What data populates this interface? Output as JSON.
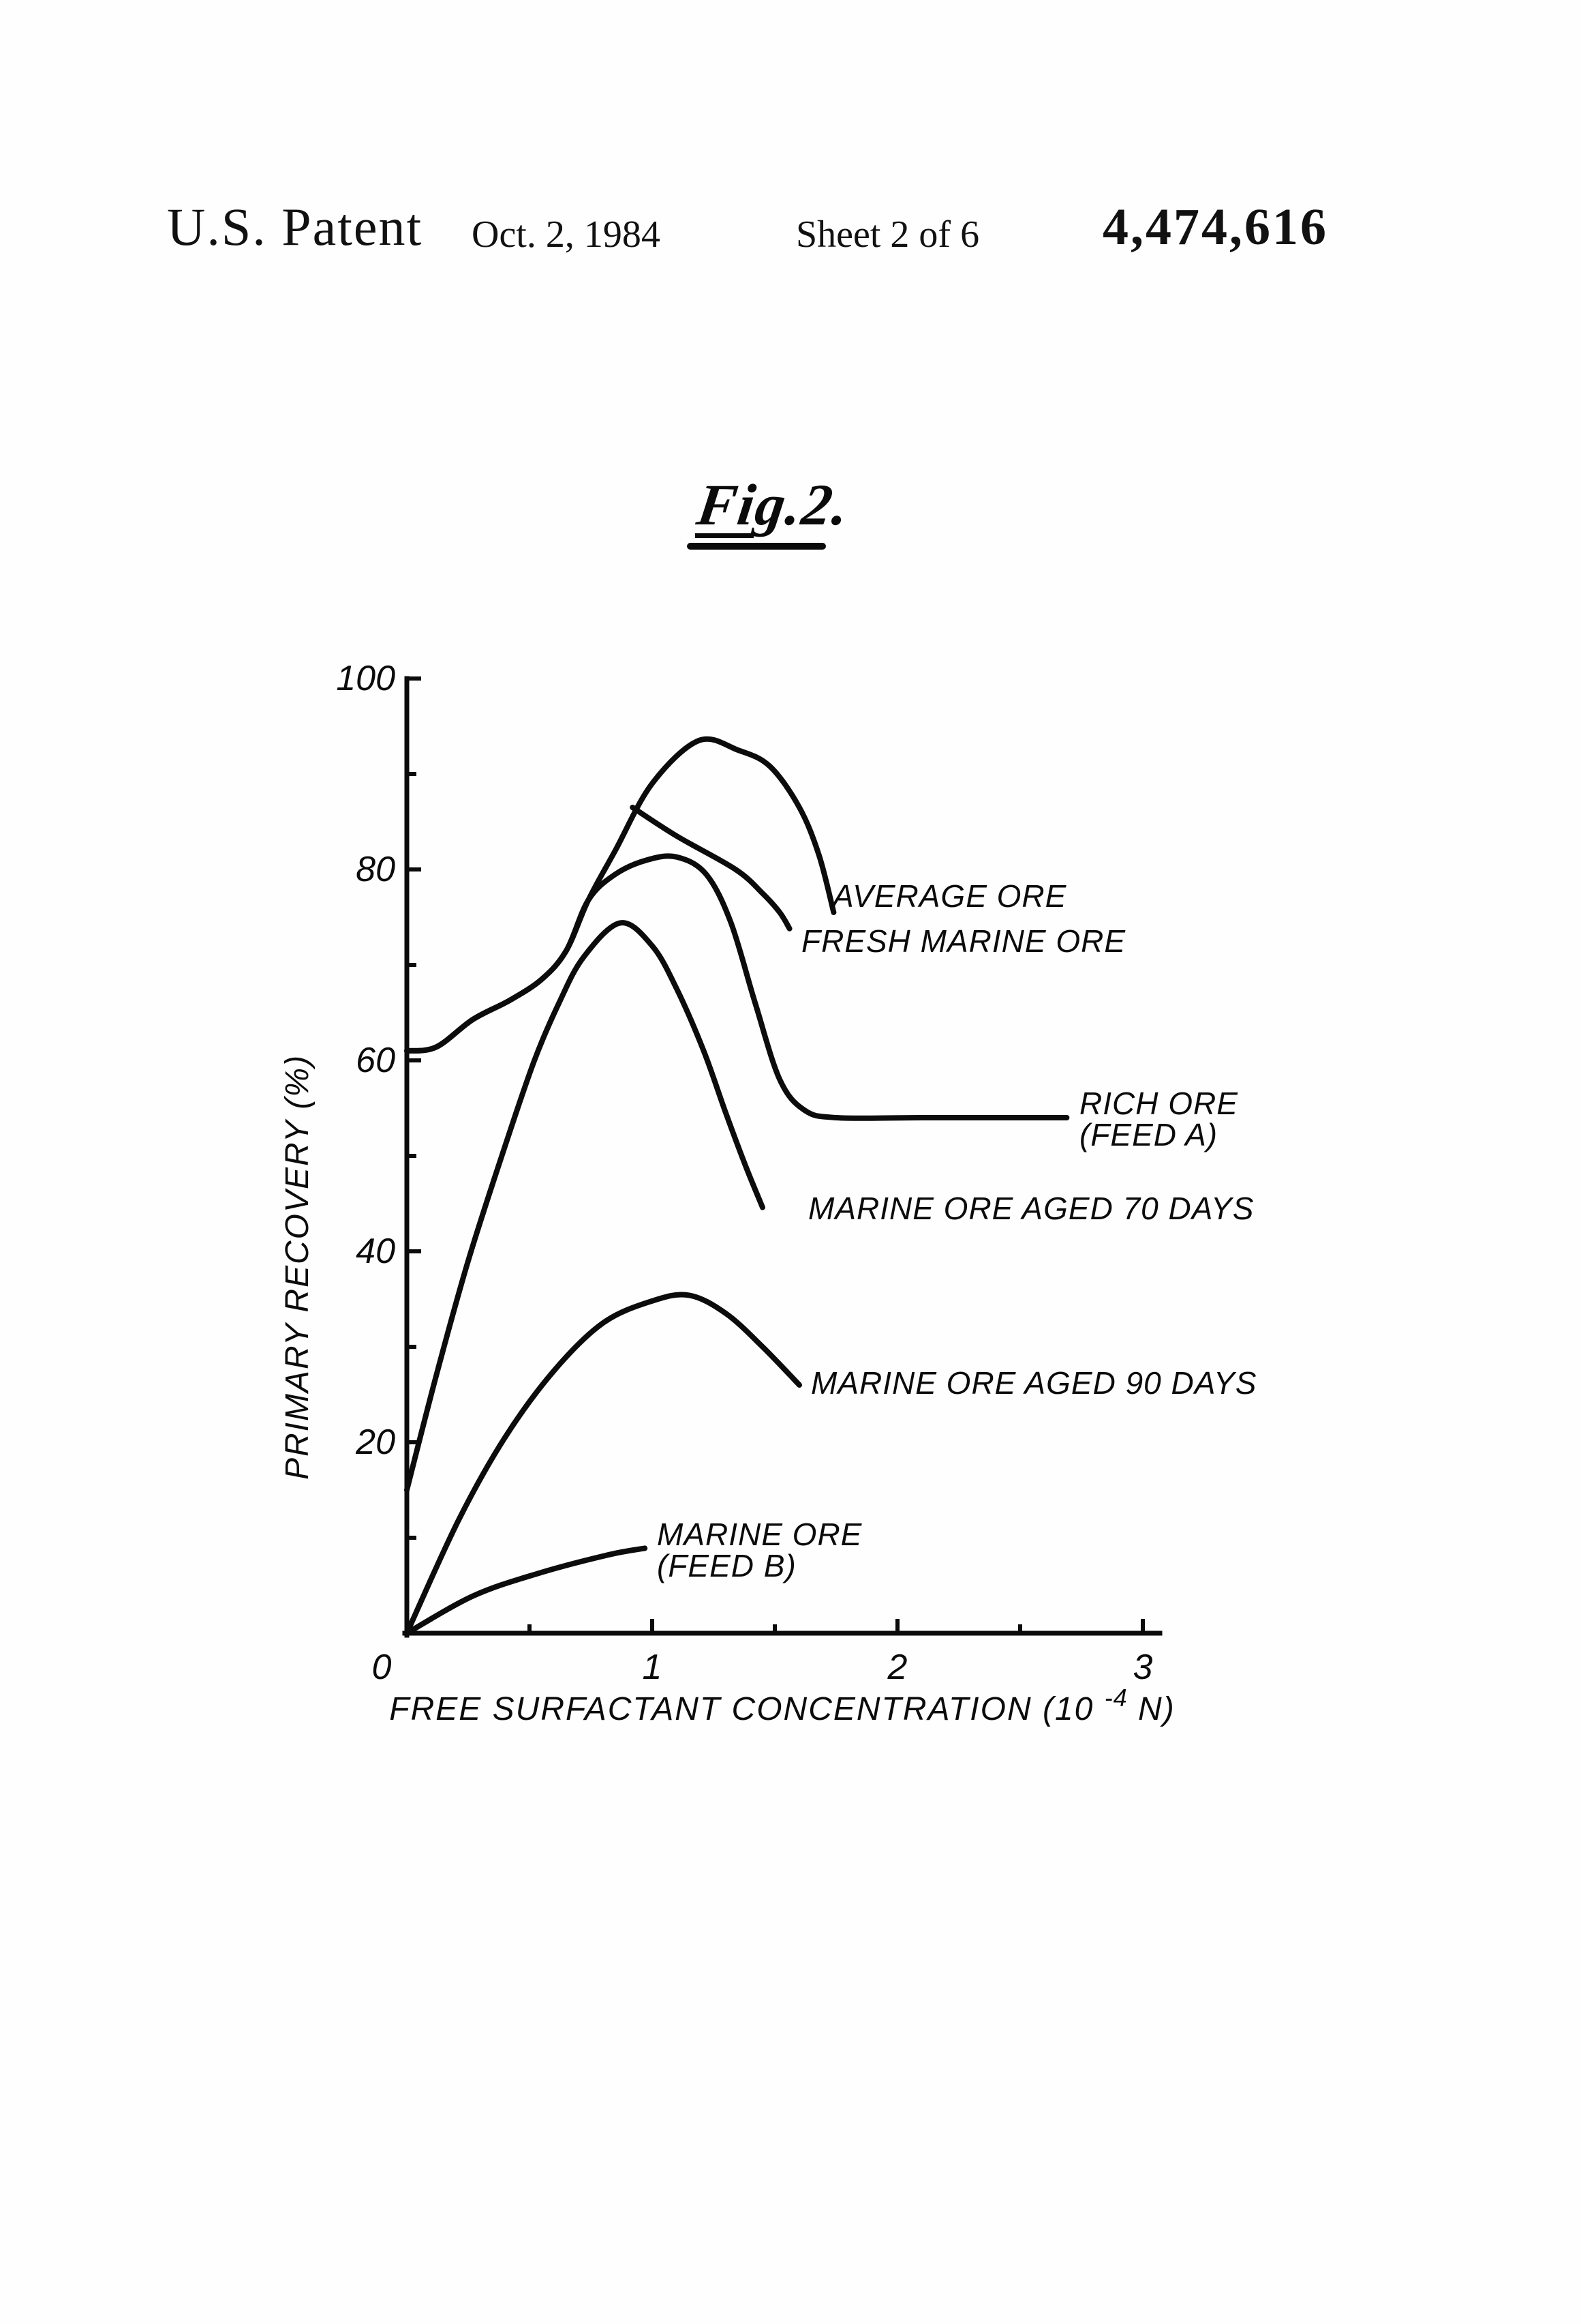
{
  "header": {
    "publication": "U.S. Patent",
    "date": "Oct. 2, 1984",
    "sheet": "Sheet 2 of 6",
    "patent_number": "4,474,616"
  },
  "figure": {
    "label": "Fig.2."
  },
  "chart_data": {
    "type": "line",
    "title": "Fig.2.",
    "xlabel_pre": "FREE SURFACTANT CONCENTRATION (10",
    "xlabel_sup": "-4",
    "xlabel_post": " N)",
    "ylabel": "PRIMARY RECOVERY (%)",
    "xlim": [
      0,
      3.06
    ],
    "ylim": [
      0,
      100
    ],
    "x_major_ticks": [
      0,
      1,
      2,
      3
    ],
    "x_minor_ticks": [
      0.5,
      1.5,
      2.5
    ],
    "y_major_ticks": [
      20,
      40,
      60,
      80,
      100
    ],
    "y_minor_ticks": [
      10,
      30,
      50,
      70,
      90
    ],
    "grid": false,
    "legend_position": "inline-labels-at-curve-ends",
    "series": [
      {
        "id": "average_ore",
        "name": "AVERAGE ORE",
        "label_lines": [
          "AVERAGE ORE"
        ],
        "points": [
          [
            0,
            61
          ],
          [
            0.12,
            61.4
          ],
          [
            0.27,
            64.3
          ],
          [
            0.42,
            66.3
          ],
          [
            0.55,
            68.5
          ],
          [
            0.65,
            71.5
          ],
          [
            0.74,
            76.8
          ],
          [
            0.85,
            82
          ],
          [
            1.0,
            89
          ],
          [
            1.19,
            93.5
          ],
          [
            1.35,
            92.5
          ],
          [
            1.48,
            90.8
          ],
          [
            1.6,
            86.5
          ],
          [
            1.68,
            81.5
          ],
          [
            1.74,
            75.5
          ]
        ]
      },
      {
        "id": "fresh_marine_ore",
        "name": "FRESH MARINE ORE",
        "label_lines": [
          "FRESH MARINE ORE"
        ],
        "points": [
          [
            0.92,
            86.5
          ],
          [
            1.1,
            83.5
          ],
          [
            1.34,
            80
          ],
          [
            1.45,
            77.5
          ],
          [
            1.52,
            75.5
          ],
          [
            1.56,
            73.8
          ]
        ]
      },
      {
        "id": "rich_ore_feed_a",
        "name": "RICH ORE (FEED A)",
        "label_lines": [
          "RICH ORE",
          "(FEED A)"
        ],
        "points": [
          [
            0,
            61
          ],
          [
            0.12,
            61.4
          ],
          [
            0.27,
            64.3
          ],
          [
            0.42,
            66.3
          ],
          [
            0.55,
            68.5
          ],
          [
            0.65,
            71.5
          ],
          [
            0.74,
            76.8
          ],
          [
            0.85,
            79.5
          ],
          [
            0.98,
            81
          ],
          [
            1.1,
            81.3
          ],
          [
            1.22,
            79.5
          ],
          [
            1.32,
            74.5
          ],
          [
            1.42,
            66
          ],
          [
            1.52,
            58
          ],
          [
            1.62,
            54.8
          ],
          [
            1.75,
            54
          ],
          [
            2.1,
            54
          ],
          [
            2.4,
            54
          ],
          [
            2.69,
            54
          ]
        ]
      },
      {
        "id": "marine_ore_aged_70",
        "name": "MARINE ORE AGED 70 DAYS",
        "label_lines": [
          "MARINE ORE AGED 70 DAYS"
        ],
        "points": [
          [
            0,
            15
          ],
          [
            0.12,
            27
          ],
          [
            0.25,
            39
          ],
          [
            0.4,
            51
          ],
          [
            0.52,
            60
          ],
          [
            0.62,
            66
          ],
          [
            0.72,
            70.8
          ],
          [
            0.87,
            74.4
          ],
          [
            1.0,
            72
          ],
          [
            1.1,
            67.5
          ],
          [
            1.21,
            61
          ],
          [
            1.3,
            54.5
          ],
          [
            1.38,
            49
          ],
          [
            1.45,
            44.6
          ]
        ]
      },
      {
        "id": "marine_ore_aged_90",
        "name": "MARINE ORE AGED 90 DAYS",
        "label_lines": [
          "MARINE ORE AGED 90 DAYS"
        ],
        "points": [
          [
            0,
            0
          ],
          [
            0.21,
            11.8
          ],
          [
            0.4,
            20.5
          ],
          [
            0.6,
            27.5
          ],
          [
            0.8,
            32.5
          ],
          [
            1.0,
            34.8
          ],
          [
            1.15,
            35.4
          ],
          [
            1.3,
            33.5
          ],
          [
            1.45,
            30
          ],
          [
            1.6,
            26
          ]
        ]
      },
      {
        "id": "marine_ore_feed_b",
        "name": "MARINE ORE (FEED B)",
        "label_lines": [
          "MARINE ORE",
          "(FEED B)"
        ],
        "points": [
          [
            0,
            0
          ],
          [
            0.27,
            3.9
          ],
          [
            0.54,
            6.3
          ],
          [
            0.82,
            8.2
          ],
          [
            0.97,
            8.9
          ]
        ]
      }
    ]
  }
}
